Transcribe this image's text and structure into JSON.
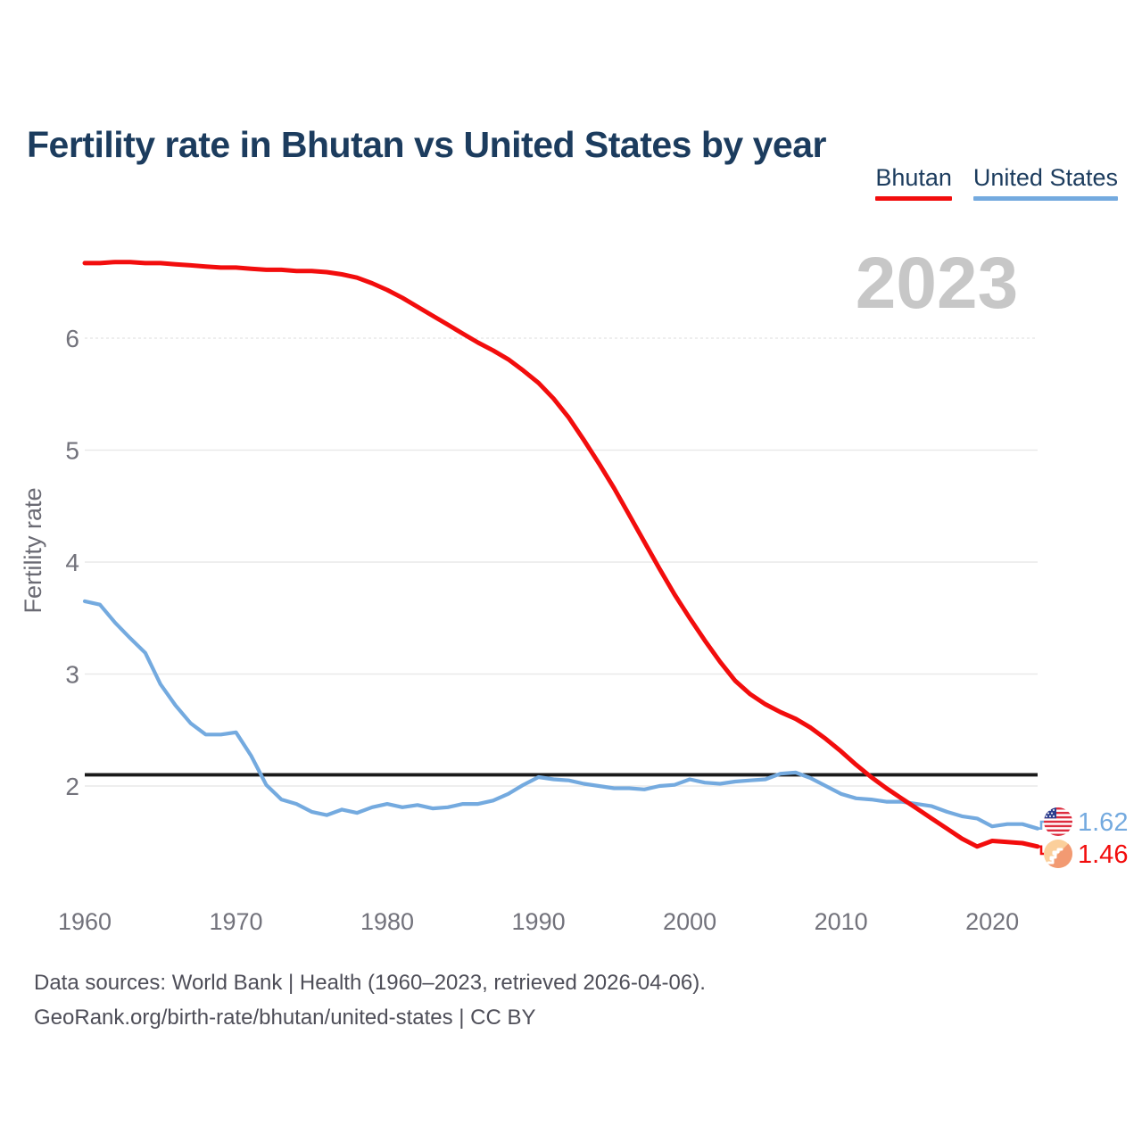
{
  "title": "Fertility rate in Bhutan vs United States by year",
  "watermark": "2023",
  "ylabel": "Fertility rate",
  "legend": [
    {
      "label": "Bhutan",
      "color": "#f20d0d"
    },
    {
      "label": "United States",
      "color": "#74aadf"
    }
  ],
  "end_labels": [
    {
      "series": "United States",
      "value": "1.62",
      "flag": "us-flag",
      "color": "#74aadf"
    },
    {
      "series": "Bhutan",
      "value": "1.46",
      "flag": "bhutan-flag",
      "color": "#f20d0d"
    }
  ],
  "source_line1": "Data sources: World Bank | Health (1960–2023, retrieved 2026-04-06).",
  "source_line2": "GeoRank.org/birth-rate/bhutan/united-states | CC BY",
  "chart_data": {
    "type": "line",
    "title": "Fertility rate in Bhutan vs United States by year",
    "xlabel": "",
    "ylabel": "Fertility rate",
    "xlim": [
      1960,
      2023
    ],
    "ylim": [
      1.3,
      6.9
    ],
    "x_ticks": [
      1960,
      1970,
      1980,
      1990,
      2000,
      2010,
      2020
    ],
    "y_ticks": [
      2,
      3,
      4,
      5,
      6
    ],
    "grid": true,
    "legend_position": "top-right",
    "reference_line": {
      "value": 2.1,
      "color": "#1a1a1a"
    },
    "x": [
      1960,
      1961,
      1962,
      1963,
      1964,
      1965,
      1966,
      1967,
      1968,
      1969,
      1970,
      1971,
      1972,
      1973,
      1974,
      1975,
      1976,
      1977,
      1978,
      1979,
      1980,
      1981,
      1982,
      1983,
      1984,
      1985,
      1986,
      1987,
      1988,
      1989,
      1990,
      1991,
      1992,
      1993,
      1994,
      1995,
      1996,
      1997,
      1998,
      1999,
      2000,
      2001,
      2002,
      2003,
      2004,
      2005,
      2006,
      2007,
      2008,
      2009,
      2010,
      2011,
      2012,
      2013,
      2014,
      2015,
      2016,
      2017,
      2018,
      2019,
      2020,
      2021,
      2022,
      2023
    ],
    "series": [
      {
        "name": "United States",
        "color": "#74aadf",
        "stroke_width": 4.2,
        "values": [
          3.65,
          3.62,
          3.46,
          3.32,
          3.19,
          2.91,
          2.72,
          2.56,
          2.46,
          2.46,
          2.48,
          2.27,
          2.01,
          1.88,
          1.84,
          1.77,
          1.74,
          1.79,
          1.76,
          1.81,
          1.84,
          1.81,
          1.83,
          1.8,
          1.81,
          1.84,
          1.84,
          1.87,
          1.93,
          2.01,
          2.08,
          2.06,
          2.05,
          2.02,
          2.0,
          1.98,
          1.98,
          1.97,
          2.0,
          2.01,
          2.06,
          2.03,
          2.02,
          2.04,
          2.05,
          2.06,
          2.11,
          2.12,
          2.07,
          2.0,
          1.93,
          1.89,
          1.88,
          1.86,
          1.86,
          1.84,
          1.82,
          1.77,
          1.73,
          1.71,
          1.64,
          1.66,
          1.66,
          1.62
        ]
      },
      {
        "name": "Bhutan",
        "color": "#f20d0d",
        "stroke_width": 5,
        "values": [
          6.67,
          6.67,
          6.68,
          6.68,
          6.67,
          6.67,
          6.66,
          6.65,
          6.64,
          6.63,
          6.63,
          6.62,
          6.61,
          6.61,
          6.6,
          6.6,
          6.59,
          6.57,
          6.54,
          6.49,
          6.43,
          6.36,
          6.28,
          6.2,
          6.12,
          6.04,
          5.96,
          5.89,
          5.81,
          5.71,
          5.6,
          5.46,
          5.29,
          5.09,
          4.88,
          4.66,
          4.42,
          4.18,
          3.94,
          3.71,
          3.5,
          3.3,
          3.11,
          2.94,
          2.82,
          2.73,
          2.66,
          2.6,
          2.52,
          2.42,
          2.31,
          2.19,
          2.08,
          1.98,
          1.89,
          1.8,
          1.71,
          1.62,
          1.53,
          1.46,
          1.51,
          1.5,
          1.49,
          1.46
        ]
      }
    ]
  }
}
